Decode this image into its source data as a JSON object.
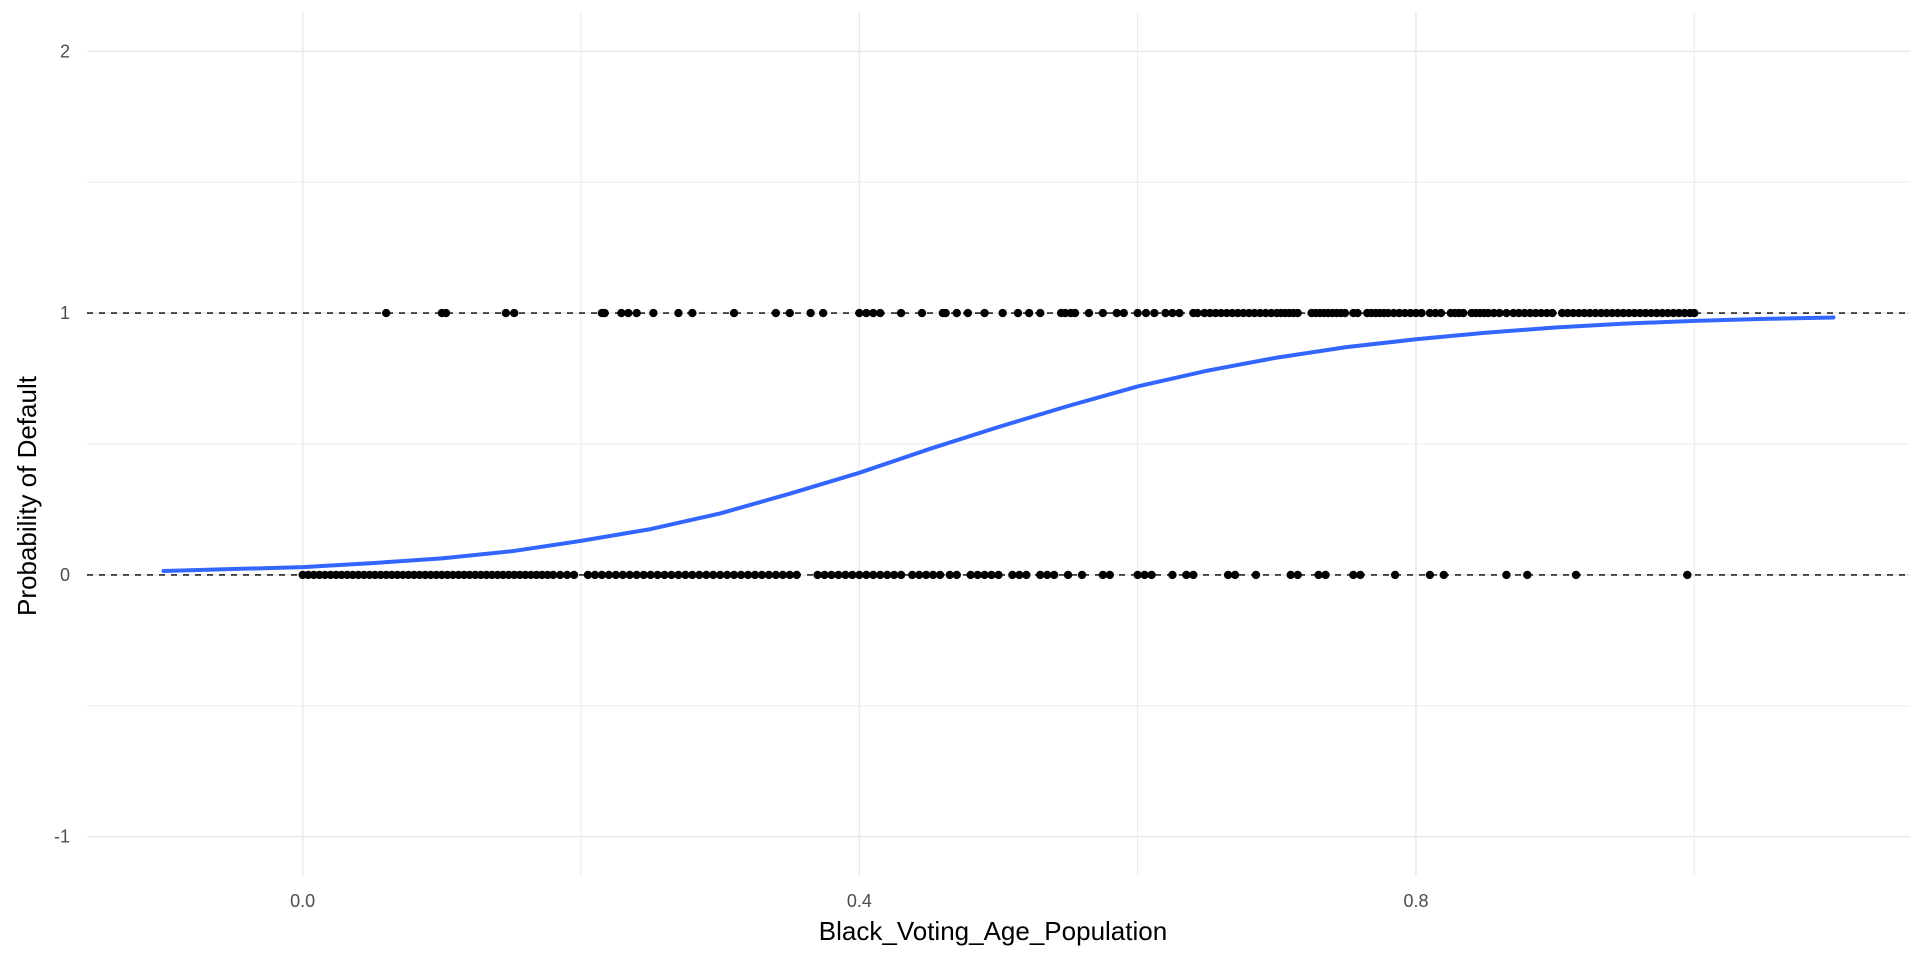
{
  "chart_data": {
    "type": "scatter",
    "title": "",
    "xlabel": "Black_Voting_Age_Population",
    "ylabel": "Probability of Default",
    "xlim": [
      -0.155,
      1.155
    ],
    "ylim": [
      -1.15,
      2.15
    ],
    "x_ticks": [
      0.0,
      0.4,
      0.8
    ],
    "x_tick_labels": [
      "0.0",
      "0.4",
      "0.8"
    ],
    "x_minor_breaks": [
      0.2,
      0.6,
      1.0
    ],
    "y_ticks": [
      -1,
      0,
      1,
      2
    ],
    "y_tick_labels": [
      "-1",
      "0",
      "1",
      "2"
    ],
    "y_minor_breaks": [
      -0.5,
      0.5,
      1.5
    ],
    "grid": true,
    "reference_lines": [
      0,
      1
    ],
    "colors": {
      "curve": "#3366ff",
      "points": "#000000",
      "grid": "#ebebeb",
      "reference": "#000000"
    },
    "series": [
      {
        "kind": "points",
        "y": 1,
        "x": [
          0.06,
          0.1,
          0.103,
          0.146,
          0.152,
          0.215,
          0.217,
          0.229,
          0.234,
          0.24,
          0.252,
          0.27,
          0.28,
          0.31,
          0.34,
          0.35,
          0.365,
          0.374,
          0.4,
          0.405,
          0.41,
          0.415,
          0.43,
          0.445,
          0.46,
          0.462,
          0.47,
          0.478,
          0.49,
          0.503,
          0.514,
          0.522,
          0.53,
          0.545,
          0.548,
          0.552,
          0.555,
          0.565,
          0.575,
          0.585,
          0.59,
          0.6,
          0.606,
          0.612,
          0.62,
          0.625,
          0.63,
          0.64,
          0.643,
          0.648,
          0.652,
          0.656,
          0.66,
          0.664,
          0.668,
          0.672,
          0.676,
          0.68,
          0.684,
          0.688,
          0.692,
          0.696,
          0.7,
          0.703,
          0.706,
          0.709,
          0.712,
          0.715,
          0.725,
          0.728,
          0.731,
          0.734,
          0.737,
          0.74,
          0.743,
          0.746,
          0.749,
          0.755,
          0.758,
          0.765,
          0.768,
          0.771,
          0.774,
          0.777,
          0.78,
          0.784,
          0.788,
          0.792,
          0.796,
          0.8,
          0.804,
          0.81,
          0.814,
          0.818,
          0.825,
          0.828,
          0.831,
          0.834,
          0.84,
          0.843,
          0.846,
          0.849,
          0.852,
          0.856,
          0.86,
          0.865,
          0.87,
          0.874,
          0.878,
          0.882,
          0.886,
          0.89,
          0.894,
          0.898,
          0.905,
          0.909,
          0.913,
          0.917,
          0.921,
          0.925,
          0.929,
          0.933,
          0.937,
          0.941,
          0.945,
          0.949,
          0.953,
          0.957,
          0.961,
          0.965,
          0.969,
          0.973,
          0.977,
          0.981,
          0.985,
          0.989,
          0.993,
          0.997,
          1.0
        ]
      },
      {
        "kind": "points",
        "y": 0,
        "x": [
          0.0,
          0.004,
          0.008,
          0.012,
          0.016,
          0.02,
          0.024,
          0.028,
          0.032,
          0.036,
          0.04,
          0.044,
          0.048,
          0.052,
          0.056,
          0.06,
          0.064,
          0.068,
          0.072,
          0.076,
          0.08,
          0.084,
          0.088,
          0.092,
          0.096,
          0.1,
          0.104,
          0.108,
          0.112,
          0.116,
          0.12,
          0.124,
          0.128,
          0.132,
          0.136,
          0.14,
          0.144,
          0.148,
          0.152,
          0.156,
          0.16,
          0.164,
          0.168,
          0.172,
          0.176,
          0.18,
          0.185,
          0.19,
          0.195,
          0.205,
          0.21,
          0.215,
          0.22,
          0.225,
          0.23,
          0.235,
          0.24,
          0.245,
          0.25,
          0.255,
          0.26,
          0.265,
          0.27,
          0.275,
          0.28,
          0.285,
          0.29,
          0.295,
          0.3,
          0.305,
          0.31,
          0.315,
          0.32,
          0.325,
          0.33,
          0.335,
          0.34,
          0.345,
          0.35,
          0.355,
          0.37,
          0.375,
          0.38,
          0.385,
          0.39,
          0.395,
          0.4,
          0.405,
          0.41,
          0.415,
          0.42,
          0.425,
          0.43,
          0.438,
          0.443,
          0.448,
          0.453,
          0.458,
          0.465,
          0.47,
          0.48,
          0.485,
          0.49,
          0.495,
          0.5,
          0.51,
          0.515,
          0.52,
          0.53,
          0.535,
          0.54,
          0.55,
          0.56,
          0.575,
          0.58,
          0.6,
          0.605,
          0.61,
          0.625,
          0.635,
          0.64,
          0.665,
          0.67,
          0.685,
          0.71,
          0.715,
          0.73,
          0.735,
          0.755,
          0.76,
          0.785,
          0.81,
          0.82,
          0.865,
          0.88,
          0.915,
          0.995
        ]
      },
      {
        "kind": "curve",
        "label": "",
        "x": [
          -0.1,
          0.0,
          0.05,
          0.1,
          0.15,
          0.2,
          0.25,
          0.3,
          0.35,
          0.4,
          0.45,
          0.5,
          0.55,
          0.6,
          0.65,
          0.7,
          0.75,
          0.8,
          0.85,
          0.9,
          0.95,
          1.0,
          1.05,
          1.1
        ],
        "y": [
          0.015,
          0.03,
          0.045,
          0.063,
          0.09,
          0.13,
          0.175,
          0.235,
          0.31,
          0.39,
          0.48,
          0.565,
          0.645,
          0.72,
          0.78,
          0.83,
          0.87,
          0.9,
          0.925,
          0.945,
          0.96,
          0.97,
          0.978,
          0.983
        ]
      }
    ]
  }
}
